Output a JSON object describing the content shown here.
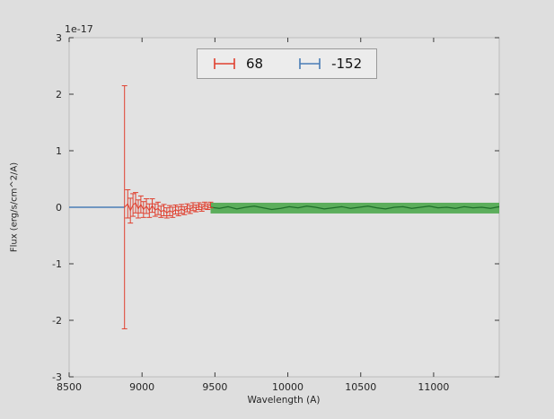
{
  "chart_data": {
    "type": "line",
    "title": "",
    "xlabel": "Wavelength (A)",
    "ylabel": "Flux (erg/s/cm^2/A)",
    "offset_text": "1e-17",
    "xlim": [
      8500,
      11450
    ],
    "ylim": [
      -3,
      3
    ],
    "grid": false,
    "legend_position": "upper center",
    "xticks": [
      {
        "value": 8500,
        "label": "8500"
      },
      {
        "value": 9000,
        "label": "9000"
      },
      {
        "value": 9500,
        "label": "9500"
      },
      {
        "value": 10000,
        "label": "10000"
      },
      {
        "value": 10500,
        "label": "10500"
      },
      {
        "value": 11000,
        "label": "11000"
      }
    ],
    "yticks": [
      {
        "value": -3,
        "label": "-3"
      },
      {
        "value": -2,
        "label": "-2"
      },
      {
        "value": -1,
        "label": "-1"
      },
      {
        "value": 0,
        "label": "0"
      },
      {
        "value": 1,
        "label": "1"
      },
      {
        "value": 2,
        "label": "2"
      },
      {
        "value": 3,
        "label": "3"
      }
    ],
    "legend": [
      {
        "label": "68",
        "color": "#e0402f"
      },
      {
        "label": "-152",
        "color": "#4a7db6"
      }
    ],
    "colors": {
      "figure_bg": "#dedede",
      "axes_bg": "#e2e2e2",
      "frame": "#bcbcbc",
      "tick": "#3a3a3a",
      "text": "#262626"
    },
    "series": {
      "red": {
        "name": "68",
        "color": "#e0402f",
        "points_format": "[wavelength, flux_1e-17, yerr_1e-17]",
        "points": [
          [
            8880,
            0.0,
            2.15
          ],
          [
            8902,
            0.06,
            0.25
          ],
          [
            8920,
            -0.06,
            0.22
          ],
          [
            8938,
            0.04,
            0.2
          ],
          [
            8956,
            0.08,
            0.18
          ],
          [
            8974,
            -0.03,
            0.16
          ],
          [
            8992,
            0.05,
            0.15
          ],
          [
            9010,
            -0.04,
            0.14
          ],
          [
            9030,
            0.02,
            0.13
          ],
          [
            9050,
            -0.06,
            0.12
          ],
          [
            9070,
            0.03,
            0.12
          ],
          [
            9090,
            -0.05,
            0.11
          ],
          [
            9110,
            -0.02,
            0.11
          ],
          [
            9130,
            -0.08,
            0.1
          ],
          [
            9150,
            -0.05,
            0.1
          ],
          [
            9170,
            -0.1,
            0.09
          ],
          [
            9190,
            -0.06,
            0.09
          ],
          [
            9210,
            -0.09,
            0.09
          ],
          [
            9230,
            -0.04,
            0.08
          ],
          [
            9250,
            -0.07,
            0.08
          ],
          [
            9270,
            -0.03,
            0.08
          ],
          [
            9290,
            -0.06,
            0.07
          ],
          [
            9310,
            -0.01,
            0.07
          ],
          [
            9330,
            -0.04,
            0.07
          ],
          [
            9350,
            0.01,
            0.07
          ],
          [
            9370,
            -0.02,
            0.06
          ],
          [
            9390,
            0.02,
            0.06
          ],
          [
            9410,
            -0.01,
            0.06
          ],
          [
            9430,
            0.03,
            0.06
          ],
          [
            9450,
            0.01,
            0.05
          ],
          [
            9470,
            0.04,
            0.05
          ]
        ]
      },
      "blue": {
        "name": "-152",
        "color": "#4a7db6",
        "points": [
          [
            8500,
            0.0
          ],
          [
            8880,
            0.0
          ]
        ]
      },
      "band": {
        "x_start": 9470,
        "x_end": 11450,
        "upper": 0.08,
        "lower": -0.11,
        "fill_color": "#44a544",
        "opacity": 0.85,
        "line_color": "#1f6f2a",
        "line": [
          [
            9470,
            0.0
          ],
          [
            9530,
            -0.02
          ],
          [
            9590,
            0.01
          ],
          [
            9650,
            -0.03
          ],
          [
            9710,
            0.0
          ],
          [
            9770,
            0.02
          ],
          [
            9830,
            -0.01
          ],
          [
            9890,
            -0.04
          ],
          [
            9950,
            -0.02
          ],
          [
            10010,
            0.01
          ],
          [
            10070,
            -0.01
          ],
          [
            10130,
            0.02
          ],
          [
            10190,
            0.0
          ],
          [
            10250,
            -0.03
          ],
          [
            10310,
            -0.01
          ],
          [
            10370,
            0.01
          ],
          [
            10430,
            -0.02
          ],
          [
            10490,
            0.0
          ],
          [
            10550,
            0.02
          ],
          [
            10610,
            -0.01
          ],
          [
            10670,
            -0.03
          ],
          [
            10730,
            0.0
          ],
          [
            10790,
            0.01
          ],
          [
            10850,
            -0.02
          ],
          [
            10910,
            0.0
          ],
          [
            10970,
            0.02
          ],
          [
            11030,
            -0.01
          ],
          [
            11090,
            0.0
          ],
          [
            11150,
            -0.02
          ],
          [
            11210,
            0.01
          ],
          [
            11270,
            -0.01
          ],
          [
            11330,
            0.0
          ],
          [
            11390,
            -0.02
          ],
          [
            11450,
            0.01
          ]
        ]
      }
    }
  }
}
